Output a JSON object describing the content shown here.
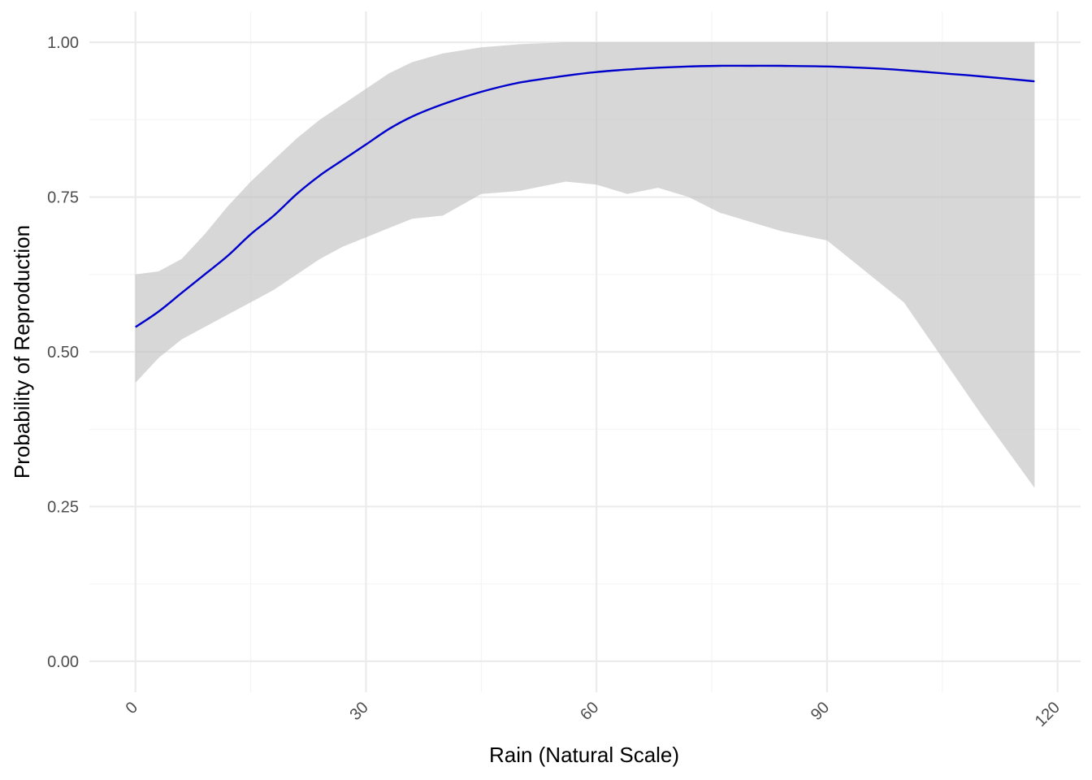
{
  "chart_data": {
    "type": "line",
    "xlabel": "Rain (Natural Scale)",
    "ylabel": "Probability of Reproduction",
    "xlim": [
      -6,
      123
    ],
    "ylim": [
      -0.05,
      1.05
    ],
    "x_ticks": [
      0,
      30,
      60,
      90,
      120
    ],
    "x_tick_labels": [
      "0",
      "30",
      "60",
      "90",
      "120"
    ],
    "y_ticks": [
      0,
      0.25,
      0.5,
      0.75,
      1.0
    ],
    "y_tick_labels": [
      "0.00",
      "0.25",
      "0.50",
      "0.75",
      "1.00"
    ],
    "x_minor_ticks": [
      15,
      45,
      75,
      105
    ],
    "y_minor_ticks": [
      0.125,
      0.375,
      0.625,
      0.875
    ],
    "grid": true,
    "colors": {
      "line": "#0000cd",
      "ribbon": "#bfbfbf"
    },
    "series": [
      {
        "values": [
          {
            "x": 0,
            "y": 0.54,
            "lower": 0.45,
            "upper": 0.625
          },
          {
            "x": 3,
            "y": 0.565,
            "lower": 0.49,
            "upper": 0.63
          },
          {
            "x": 6,
            "y": 0.595,
            "lower": 0.52,
            "upper": 0.65
          },
          {
            "x": 9,
            "y": 0.625,
            "lower": 0.54,
            "upper": 0.69
          },
          {
            "x": 12,
            "y": 0.655,
            "lower": 0.56,
            "upper": 0.735
          },
          {
            "x": 15,
            "y": 0.69,
            "lower": 0.58,
            "upper": 0.775
          },
          {
            "x": 18,
            "y": 0.72,
            "lower": 0.6,
            "upper": 0.81
          },
          {
            "x": 21,
            "y": 0.755,
            "lower": 0.625,
            "upper": 0.845
          },
          {
            "x": 24,
            "y": 0.785,
            "lower": 0.65,
            "upper": 0.875
          },
          {
            "x": 27,
            "y": 0.81,
            "lower": 0.67,
            "upper": 0.9
          },
          {
            "x": 30,
            "y": 0.835,
            "lower": 0.685,
            "upper": 0.925
          },
          {
            "x": 33,
            "y": 0.86,
            "lower": 0.7,
            "upper": 0.95
          },
          {
            "x": 36,
            "y": 0.88,
            "lower": 0.715,
            "upper": 0.968
          },
          {
            "x": 40,
            "y": 0.9,
            "lower": 0.72,
            "upper": 0.982
          },
          {
            "x": 45,
            "y": 0.92,
            "lower": 0.755,
            "upper": 0.992
          },
          {
            "x": 50,
            "y": 0.935,
            "lower": 0.76,
            "upper": 0.997
          },
          {
            "x": 56,
            "y": 0.946,
            "lower": 0.775,
            "upper": 1.0
          },
          {
            "x": 60,
            "y": 0.952,
            "lower": 0.77,
            "upper": 1.0
          },
          {
            "x": 64,
            "y": 0.956,
            "lower": 0.755,
            "upper": 1.0
          },
          {
            "x": 68,
            "y": 0.959,
            "lower": 0.765,
            "upper": 1.0
          },
          {
            "x": 72,
            "y": 0.961,
            "lower": 0.75,
            "upper": 1.0
          },
          {
            "x": 76,
            "y": 0.962,
            "lower": 0.725,
            "upper": 1.0
          },
          {
            "x": 80,
            "y": 0.962,
            "lower": 0.71,
            "upper": 1.0
          },
          {
            "x": 84,
            "y": 0.962,
            "lower": 0.695,
            "upper": 1.0
          },
          {
            "x": 90,
            "y": 0.961,
            "lower": 0.68,
            "upper": 1.0
          },
          {
            "x": 96,
            "y": 0.958,
            "lower": 0.62,
            "upper": 1.0
          },
          {
            "x": 100,
            "y": 0.955,
            "lower": 0.58,
            "upper": 1.0
          },
          {
            "x": 105,
            "y": 0.95,
            "lower": 0.49,
            "upper": 1.0
          },
          {
            "x": 110,
            "y": 0.945,
            "lower": 0.4,
            "upper": 1.0
          },
          {
            "x": 117,
            "y": 0.937,
            "lower": 0.28,
            "upper": 1.0
          }
        ]
      }
    ]
  }
}
